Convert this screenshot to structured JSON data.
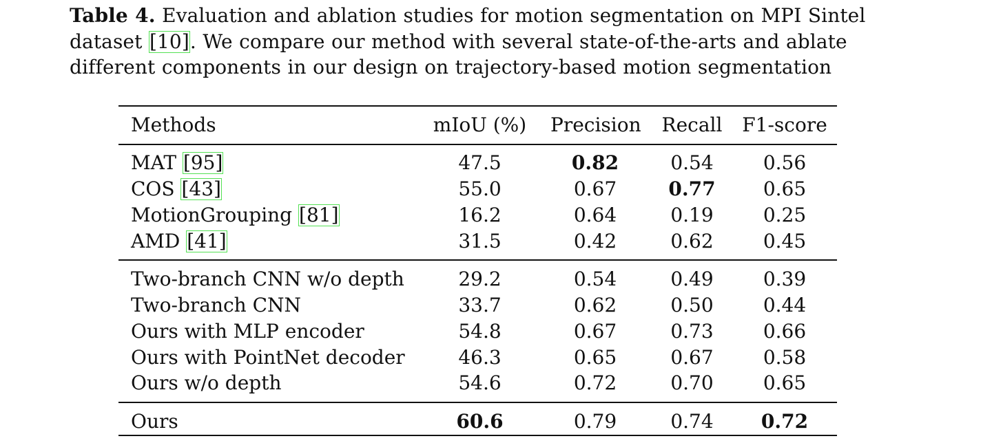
{
  "caption": {
    "label": "Table 4.",
    "text_before_ref": " Evaluation and ablation studies for motion segmentation on MPI Sintel dataset ",
    "ref": "[10]",
    "text_after_ref": ". We compare our method with several state-of-the-arts and ablate different components in our design on trajectory-based motion segmentation"
  },
  "table": {
    "headers": {
      "method": "Methods",
      "miou": "mIoU (%)",
      "precision": "Precision",
      "recall": "Recall",
      "f1": "F1-score"
    },
    "rows": [
      {
        "name": "MAT ",
        "ref": "[95]",
        "miou": "47.5",
        "precision": "0.82",
        "recall": "0.54",
        "f1": "0.56"
      },
      {
        "name": "COS ",
        "ref": "[43]",
        "miou": "55.0",
        "precision": "0.67",
        "recall": "0.77",
        "f1": "0.65"
      },
      {
        "name": "MotionGrouping ",
        "ref": "[81]",
        "miou": "16.2",
        "precision": "0.64",
        "recall": "0.19",
        "f1": "0.25"
      },
      {
        "name": "AMD ",
        "ref": "[41]",
        "miou": "31.5",
        "precision": "0.42",
        "recall": "0.62",
        "f1": "0.45"
      },
      {
        "name": "Two-branch CNN w/o depth",
        "miou": "29.2",
        "precision": "0.54",
        "recall": "0.49",
        "f1": "0.39"
      },
      {
        "name": "Two-branch CNN",
        "miou": "33.7",
        "precision": "0.62",
        "recall": "0.50",
        "f1": "0.44"
      },
      {
        "name": "Ours with MLP encoder",
        "miou": "54.8",
        "precision": "0.67",
        "recall": "0.73",
        "f1": "0.66"
      },
      {
        "name": "Ours with PointNet decoder",
        "miou": "46.3",
        "precision": "0.65",
        "recall": "0.67",
        "f1": "0.58"
      },
      {
        "name": "Ours w/o depth",
        "miou": "54.6",
        "precision": "0.72",
        "recall": "0.70",
        "f1": "0.65"
      },
      {
        "name": "Ours",
        "miou": "60.6",
        "precision": "0.79",
        "recall": "0.74",
        "f1": "0.72"
      }
    ],
    "bold_cells": [
      "rows.0.precision",
      "rows.1.recall",
      "rows.9.miou",
      "rows.9.f1"
    ]
  },
  "colors": {
    "text": "#111111",
    "rule": "#111111",
    "citation_box": "#53e053",
    "background": "#ffffff"
  }
}
